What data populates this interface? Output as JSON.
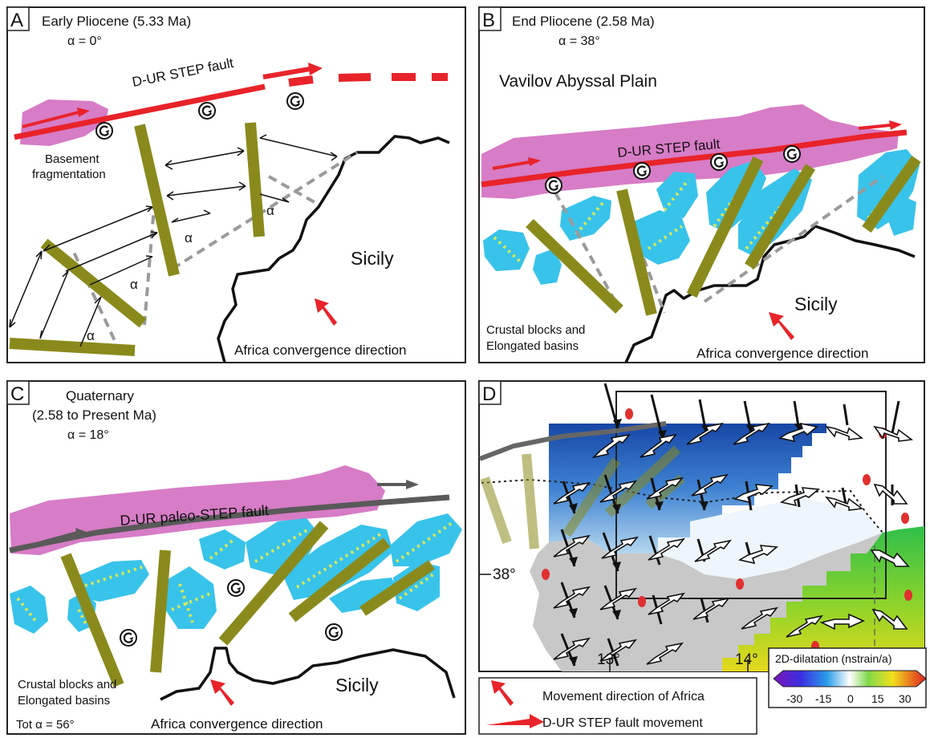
{
  "panels": {
    "a": {
      "letter": "A",
      "title": "Early Pliocene (5.33 Ma)",
      "alpha": "α = 0°",
      "fault_label": "D-UR STEP fault",
      "basement_line1": "Basement",
      "basement_line2": "fragmentation",
      "alpha_symbol": "α",
      "land_label": "Sicily",
      "convergence_label": "Africa convergence direction"
    },
    "b": {
      "letter": "B",
      "title": "End Pliocene (2.58 Ma)",
      "alpha": "α = 38°",
      "plain_label": "Vavilov Abyssal Plain",
      "fault_label": "D-UR STEP fault",
      "land_label": "Sicily",
      "blocks_line1": "Crustal blocks and",
      "blocks_line2": "Elongated basins",
      "convergence_label": "Africa convergence direction"
    },
    "c": {
      "letter": "C",
      "title_line1": "Quaternary",
      "title_line2": "(2.58 to Present Ma)",
      "alpha": "α = 18°",
      "fault_label": "D-UR paleo-STEP fault",
      "land_label": "Sicily",
      "blocks_line1": "Crustal blocks and",
      "blocks_line2": "Elongated basins",
      "total_alpha": "Tot α = 56°",
      "convergence_label": "Africa convergence direction"
    },
    "d": {
      "letter": "D",
      "lat_label": "38°",
      "lon_label_1": "13°",
      "lon_label_2": "14°",
      "colorbar_title": "2D-dilatation (nstrain/a)",
      "colorbar_ticks": [
        "-30",
        "-15",
        "0",
        "15",
        "30"
      ]
    }
  },
  "legend": {
    "africa_movement": "Movement direction of Africa",
    "fault_movement": "D-UR STEP fault movement"
  },
  "colors": {
    "fault_red": "#e8232a",
    "fault_gray": "#5a5a5a",
    "magenta_zone": "#d77cc6",
    "crustal_block": "#8a8a1c",
    "basin_blue": "#38c3ea",
    "basin_dots": "#d8e85a",
    "land_line": "#111111"
  }
}
